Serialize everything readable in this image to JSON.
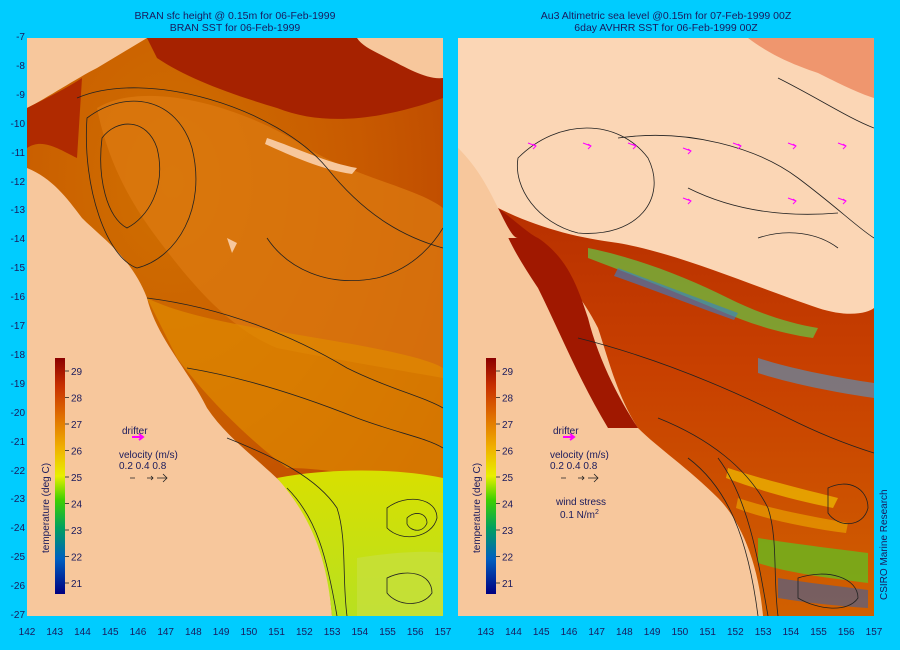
{
  "left_panel": {
    "title_line1": "BRAN sfc height @ 0.15m  for 06-Feb-1999",
    "title_line2": "BRAN SST for 06-Feb-1999"
  },
  "right_panel": {
    "title_line1": "Au3 Altimetric sea level  @0.15m  for 07-Feb-1999 00Z",
    "title_line2": "6day AVHRR SST for 06-Feb-1999 00Z"
  },
  "y_axis_labels": [
    "-7",
    "-8",
    "-9",
    "-10",
    "-11",
    "-12",
    "-13",
    "-14",
    "-15",
    "-16",
    "-17",
    "-18",
    "-19",
    "-20",
    "-21",
    "-22",
    "-23",
    "-24",
    "-25",
    "-26",
    "-27"
  ],
  "x_axis_labels": [
    "142",
    "143",
    "144",
    "145",
    "146",
    "147",
    "148",
    "149",
    "150",
    "151",
    "152",
    "153",
    "154",
    "155",
    "156",
    "157",
    "143",
    "144",
    "145",
    "146",
    "147",
    "148",
    "149",
    "150",
    "151",
    "152",
    "153",
    "154",
    "155",
    "156",
    "157"
  ],
  "colorbar": {
    "title": "temperature (deg C)",
    "ticks": [
      "29",
      "28",
      "27",
      "26",
      "25",
      "24",
      "23",
      "22",
      "21"
    ]
  },
  "legend": {
    "drifter": "drifter",
    "velocity_title": "velocity (m/s)",
    "velocity_values": "0.2 0.4 0.8",
    "wind_title": "wind stress",
    "wind_value": "0.1 N/m",
    "wind_unit_sup": "2"
  },
  "credit": "CSIRO Marine Research",
  "colors": {
    "background": "#00ccff",
    "land": "#f7c79c",
    "sst_hot": "#a82000",
    "sst_warm": "#d86a00",
    "sst_mid": "#e89a00",
    "sst_cool": "#c8e000",
    "drifter_marker": "#ff00ff"
  }
}
